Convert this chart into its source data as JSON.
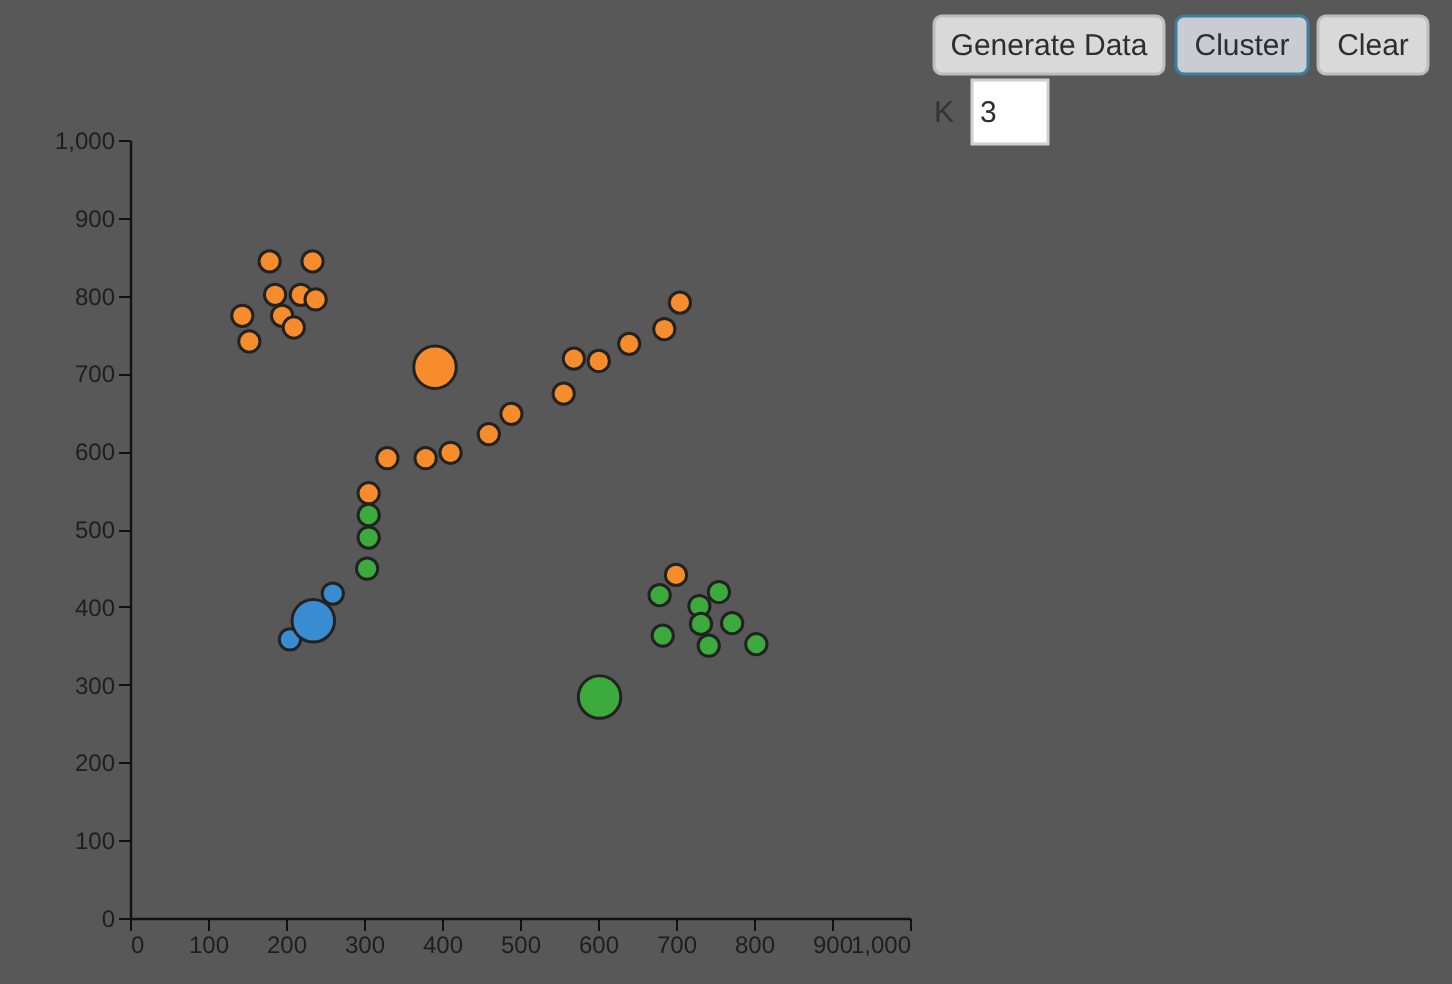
{
  "chart_data": {
    "type": "bubble",
    "series": [
      {
        "color": "#3daa3d",
        "x": [
          306,
          306,
          304,
          679,
          755,
          730,
          732,
          772,
          683,
          742,
          803,
          602
        ],
        "values": [
          518,
          489,
          449,
          415,
          419,
          401,
          378,
          379,
          363,
          350,
          352,
          284
        ],
        "sizes": [
          0.25,
          0.25,
          0.25,
          0.25,
          0.25,
          0.25,
          0.25,
          0.25,
          0.25,
          0.25,
          0.25,
          1
        ]
      },
      {
        "color": "#3a8cd0",
        "x": [
          260,
          205,
          235
        ],
        "values": [
          417,
          358,
          382
        ],
        "sizes": [
          0.25,
          0.25,
          1
        ]
      },
      {
        "color": "#f68c2b",
        "x": [
          179,
          234,
          186,
          219,
          238,
          144,
          195,
          210,
          153,
          705,
          685,
          640,
          569,
          601,
          556,
          489,
          460,
          330,
          379,
          411,
          306,
          700,
          391
        ],
        "values": [
          844,
          844,
          801,
          801,
          795,
          774,
          774,
          759,
          741,
          791,
          757,
          738,
          719,
          716,
          674,
          648,
          622,
          591,
          591,
          598,
          546,
          441,
          708
        ],
        "sizes": [
          0.25,
          0.25,
          0.25,
          0.25,
          0.25,
          0.25,
          0.25,
          0.25,
          0.25,
          0.25,
          0.25,
          0.25,
          0.25,
          0.25,
          0.25,
          0.25,
          0.25,
          0.25,
          0.25,
          0.25,
          0.25,
          0.25,
          1
        ]
      }
    ],
    "xlim": [
      0,
      1000
    ],
    "ylim": [
      0,
      1000
    ],
    "xticks": [
      0,
      100,
      200,
      300,
      400,
      500,
      600,
      700,
      800,
      900,
      {
        "value": 1000,
        "label": "1,000"
      }
    ],
    "yticks": [
      0,
      100,
      200,
      300,
      400,
      500,
      600,
      700,
      800,
      900,
      {
        "value": 1000,
        "label": "1,000"
      }
    ],
    "annotations": [
      "Generate Data",
      "Cluster",
      "Clear",
      "K",
      "3"
    ]
  }
}
